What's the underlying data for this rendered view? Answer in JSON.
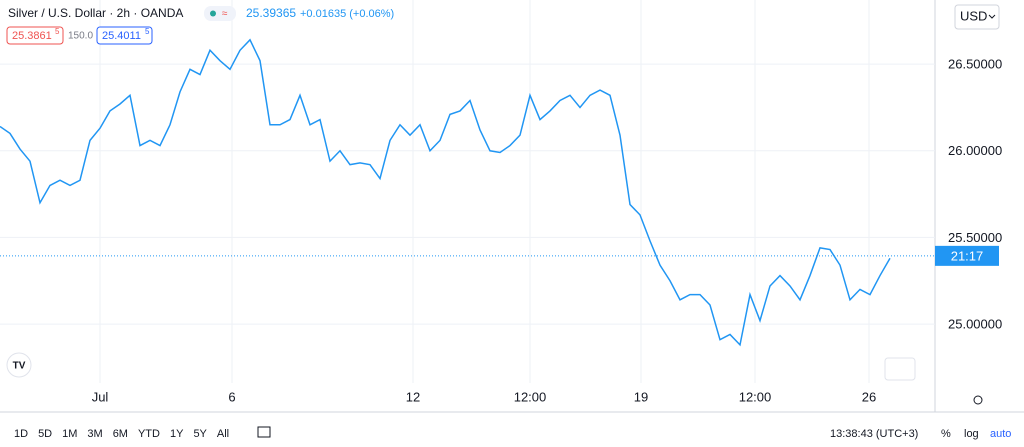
{
  "chart_data": {
    "type": "line",
    "title": "Silver / U.S. Dollar · 2h · OANDA",
    "last_price": 25.39365,
    "last_price_label": "25.39365",
    "change": "+0.01635 (+0.06%)",
    "bid": "25.3861",
    "bid_sup": "5",
    "spread": "150.0",
    "ask": "25.4011",
    "ask_sup": "5",
    "countdown": "21:17",
    "currency": "USD",
    "color": "#2196f3",
    "values": [
      26.14,
      26.1,
      26.01,
      25.94,
      25.7,
      25.8,
      25.83,
      25.8,
      25.83,
      26.06,
      26.13,
      26.23,
      26.27,
      26.32,
      26.03,
      26.06,
      26.03,
      26.15,
      26.34,
      26.47,
      26.44,
      26.58,
      26.52,
      26.47,
      26.58,
      26.64,
      26.52,
      26.15,
      26.15,
      26.18,
      26.32,
      26.15,
      26.18,
      25.94,
      26.0,
      25.92,
      25.93,
      25.92,
      25.84,
      26.06,
      26.15,
      26.09,
      26.15,
      26.0,
      26.06,
      26.21,
      26.23,
      26.29,
      26.12,
      26.0,
      25.99,
      26.03,
      26.09,
      26.32,
      26.18,
      26.23,
      26.29,
      26.32,
      26.25,
      26.32,
      26.35,
      26.32,
      26.09,
      25.69,
      25.63,
      25.48,
      25.34,
      25.25,
      25.14,
      25.17,
      25.17,
      25.11,
      24.91,
      24.94,
      24.88,
      25.17,
      25.02,
      25.22,
      25.28,
      25.22,
      25.14,
      25.28,
      25.44,
      25.43,
      25.34,
      25.14,
      25.2,
      25.17,
      25.28,
      25.38
    ],
    "xlim": [
      0,
      93.5
    ],
    "xticks": [
      {
        "value": 10,
        "label": "Jul"
      },
      {
        "value": 23.2,
        "label": "6"
      },
      {
        "value": 41.3,
        "label": "12"
      },
      {
        "value": 53,
        "label": "12:00"
      },
      {
        "value": 64.1,
        "label": "19"
      },
      {
        "value": 75.5,
        "label": "12:00"
      },
      {
        "value": 86.9,
        "label": "26"
      }
    ],
    "ylim": [
      24.66,
      26.87
    ],
    "yticks": [
      {
        "value": 25,
        "label": "25.00000"
      },
      {
        "value": 25.5,
        "label": "25.50000"
      },
      {
        "value": 26,
        "label": "26.00000"
      },
      {
        "value": 26.5,
        "label": "26.50000"
      }
    ],
    "grid": true
  },
  "toolbar": {
    "ranges": [
      "1D",
      "5D",
      "1M",
      "3M",
      "6M",
      "YTD",
      "1Y",
      "5Y",
      "All"
    ],
    "clock": "13:38:43 (UTC+3)",
    "percent": "%",
    "log": "log",
    "auto": "auto"
  }
}
